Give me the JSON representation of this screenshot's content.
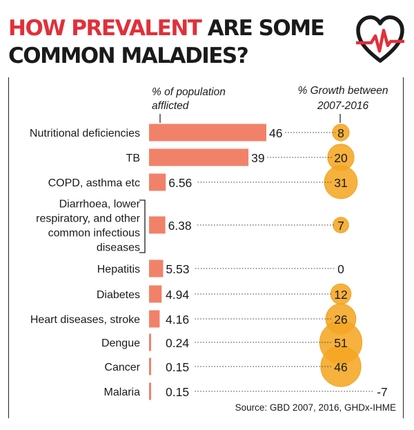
{
  "title": {
    "line1_accent": "HOW PREVALENT",
    "line1_rest": " ARE SOME",
    "line2": "COMMON MALADIES?"
  },
  "icon": "heart-pulse-icon",
  "colors": {
    "accent": "#e0303a",
    "bar": "#f28169",
    "bubble": "#f5a623",
    "bubble_dark": "#eba015",
    "text": "#1a1a1a"
  },
  "chart_data": {
    "type": "bar",
    "header_bars": [
      "% of population",
      "afflicted"
    ],
    "header_growth": [
      "% Growth between",
      "2007-2016"
    ],
    "categories": [
      [
        "Nutritional deficiencies"
      ],
      [
        "TB"
      ],
      [
        "COPD, asthma etc"
      ],
      [
        "Diarrhoea, lower",
        "respiratory, and other",
        "common infectious",
        "diseases"
      ],
      [
        "Hepatitis"
      ],
      [
        "Diabetes"
      ],
      [
        "Heart diseases, stroke"
      ],
      [
        "Dengue"
      ],
      [
        "Cancer"
      ],
      [
        "Malaria"
      ]
    ],
    "series": [
      {
        "values": [
          46,
          39,
          6.56,
          6.38,
          5.53,
          4.94,
          4.16,
          0.24,
          0.15,
          0.15
        ]
      },
      {
        "values": [
          8,
          20,
          31,
          7,
          0,
          12,
          26,
          51,
          46,
          -7
        ]
      }
    ],
    "value_labels": [
      "46",
      "39",
      "6.56",
      "6.38",
      "5.53",
      "4.94",
      "4.16",
      "0.24",
      "0.15",
      "0.15"
    ],
    "growth_labels": [
      "8",
      "20",
      "31",
      "7",
      "0",
      "12",
      "26",
      "51",
      "46",
      "-7"
    ],
    "source": "Source: GBD 2007, 2016, GHDx-IHME"
  }
}
